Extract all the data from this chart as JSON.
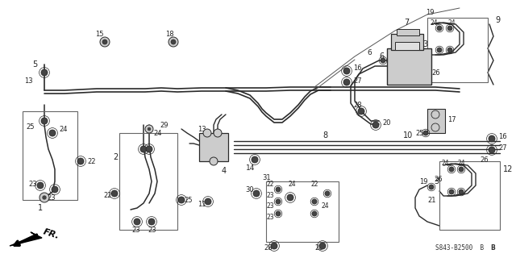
{
  "bg_color": "#ffffff",
  "line_color": "#2a2a2a",
  "diagram_code": "S843-B2500  B",
  "fig_w": 6.4,
  "fig_h": 3.2,
  "dpi": 100,
  "border_color": "#888888",
  "component_fill": "#cccccc",
  "component_dark": "#444444",
  "label_fs": 6.0,
  "label_color": "#222222"
}
